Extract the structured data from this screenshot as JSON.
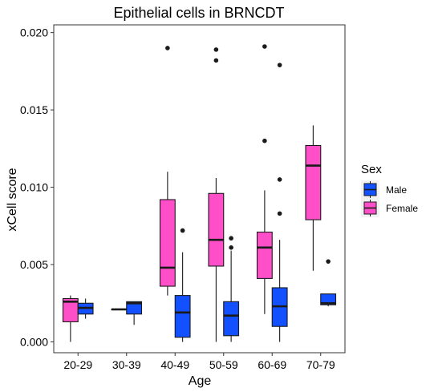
{
  "chart_data": {
    "type": "boxplot",
    "title": "Epithelial cells in BRNCDT",
    "xlabel": "Age",
    "ylabel": "xCell score",
    "categories": [
      "20-29",
      "30-39",
      "40-49",
      "50-59",
      "60-69",
      "70-79"
    ],
    "ylim": [
      -0.0007,
      0.0205
    ],
    "y_ticks": [
      "0.000",
      "0.005",
      "0.010",
      "0.015",
      "0.020"
    ],
    "y_tick_values": [
      0.0,
      0.005,
      0.01,
      0.015,
      0.02
    ],
    "grid": false,
    "legend": {
      "title": "Sex",
      "position": "right",
      "order": [
        "Male",
        "Female"
      ]
    },
    "colors": {
      "Male": "#1350ff",
      "Female": "#ff4fc8",
      "outline": "#1a1a1a",
      "panel_border": "#333333"
    },
    "series": [
      {
        "name": "Female",
        "boxes": [
          {
            "category": "20-29",
            "min": 0.0,
            "q1": 0.0013,
            "median": 0.0026,
            "q3": 0.0028,
            "max": 0.003,
            "outliers": []
          },
          {
            "category": "30-39",
            "min": 0.0021,
            "q1": 0.0021,
            "median": 0.0021,
            "q3": 0.0021,
            "max": 0.0021,
            "outliers": []
          },
          {
            "category": "40-49",
            "min": 0.003,
            "q1": 0.0036,
            "median": 0.0048,
            "q3": 0.0092,
            "max": 0.011,
            "outliers": [
              0.019
            ]
          },
          {
            "category": "50-59",
            "min": 0.0,
            "q1": 0.0049,
            "median": 0.0066,
            "q3": 0.0096,
            "max": 0.0106,
            "outliers": [
              0.0182,
              0.0189
            ]
          },
          {
            "category": "60-69",
            "min": 0.0018,
            "q1": 0.0041,
            "median": 0.0061,
            "q3": 0.0071,
            "max": 0.0098,
            "outliers": [
              0.013,
              0.0191
            ]
          },
          {
            "category": "70-79",
            "min": 0.0046,
            "q1": 0.0079,
            "median": 0.0114,
            "q3": 0.0127,
            "max": 0.014,
            "outliers": []
          }
        ]
      },
      {
        "name": "Male",
        "boxes": [
          {
            "category": "20-29",
            "min": 0.0015,
            "q1": 0.0018,
            "median": 0.0022,
            "q3": 0.0025,
            "max": 0.0028,
            "outliers": []
          },
          {
            "category": "30-39",
            "min": 0.0011,
            "q1": 0.0018,
            "median": 0.0025,
            "q3": 0.0026,
            "max": 0.0026,
            "outliers": []
          },
          {
            "category": "40-49",
            "min": 0.0,
            "q1": 0.0003,
            "median": 0.0019,
            "q3": 0.003,
            "max": 0.0058,
            "outliers": [
              0.0072
            ]
          },
          {
            "category": "50-59",
            "min": 0.0,
            "q1": 0.0004,
            "median": 0.0017,
            "q3": 0.0026,
            "max": 0.0059,
            "outliers": [
              0.0061,
              0.0067
            ]
          },
          {
            "category": "60-69",
            "min": 0.0,
            "q1": 0.001,
            "median": 0.0023,
            "q3": 0.0035,
            "max": 0.0066,
            "outliers": [
              0.0083,
              0.0105,
              0.0179
            ]
          },
          {
            "category": "70-79",
            "min": 0.0023,
            "q1": 0.0024,
            "median": 0.0025,
            "q3": 0.0031,
            "max": 0.0031,
            "outliers": [
              0.0052
            ]
          }
        ]
      }
    ]
  }
}
